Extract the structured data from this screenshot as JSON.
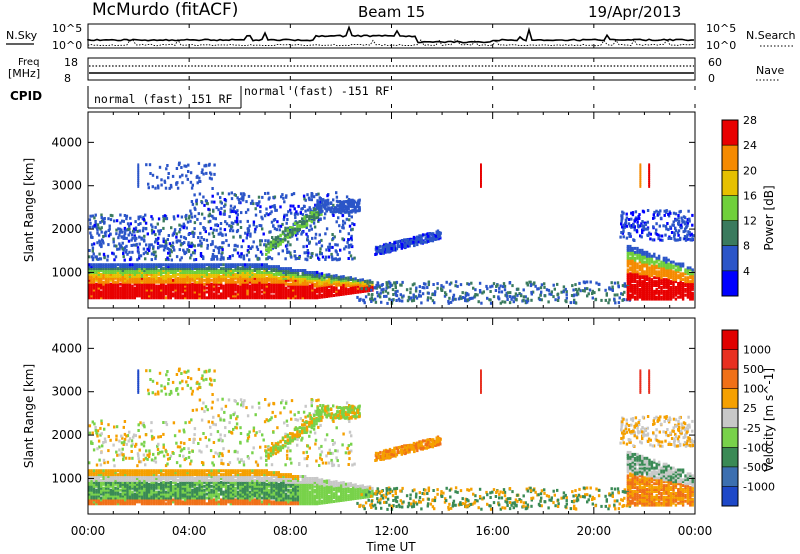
{
  "header": {
    "station": "McMurdo (fitACF)",
    "beam": "Beam 15",
    "date": "19/Apr/2013"
  },
  "summary": {
    "nsky_label": "N.Sky",
    "nsky_ticks": [
      "10^5",
      "10^0"
    ],
    "nsearch_label": "N.Search",
    "nsearch_ticks": [
      "10^5",
      "10^0"
    ],
    "freq_label_1": "Freq",
    "freq_label_2": "[MHz]",
    "freq_ticks": [
      "18",
      "8"
    ],
    "nave_label": "Nave",
    "nave_ticks": [
      "60",
      "0"
    ],
    "cpid_label": "CPID",
    "cpid_segments": [
      "normal (fast) 151 RF",
      "normal (fast) -151 RF"
    ]
  },
  "chart_data": [
    {
      "type": "heatmap",
      "title": "",
      "xlabel": "Time UT",
      "ylabel": "Slant Range [km]",
      "x_tick_labels": [
        "00:00",
        "04:00",
        "08:00",
        "12:00",
        "16:00",
        "20:00",
        "00:00"
      ],
      "y_tick_labels": [
        "1000",
        "2000",
        "3000",
        "4000"
      ],
      "ylim": [
        180,
        4700
      ],
      "colorbar": {
        "label": "Power [dB]",
        "ticks": [
          "4",
          "8",
          "12",
          "16",
          "20",
          "24",
          "28"
        ],
        "colors": [
          "#0000ff",
          "#2b55c8",
          "#3a7a5e",
          "#6fcf3a",
          "#e6c000",
          "#f58a00",
          "#e80000"
        ]
      }
    },
    {
      "type": "heatmap",
      "title": "",
      "xlabel": "Time UT",
      "ylabel": "Slant Range [km]",
      "x_tick_labels": [
        "00:00",
        "04:00",
        "08:00",
        "12:00",
        "16:00",
        "20:00",
        "00:00"
      ],
      "y_tick_labels": [
        "1000",
        "2000",
        "3000",
        "4000"
      ],
      "ylim": [
        180,
        4700
      ],
      "colorbar": {
        "label": "Velocity [m s^-1]",
        "ticks": [
          "1000",
          "500",
          "100",
          "25",
          "-25",
          "-100",
          "-500",
          "-1000"
        ],
        "colors": [
          "#1e48c8",
          "#3c6fb0",
          "#3a8a55",
          "#78d24a",
          "#c8c8c8",
          "#f5a000",
          "#f07018",
          "#e83020",
          "#e00000"
        ]
      }
    }
  ]
}
